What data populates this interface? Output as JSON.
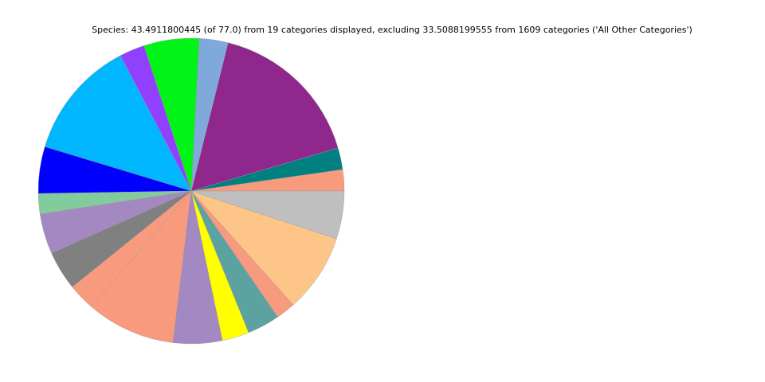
{
  "chart_data": {
    "type": "pie",
    "title": "Species: 43.4911800445 (of 77.0) from 19 categories displayed, excluding 33.5088199555 from 1609 categories ('All Other Categories')",
    "values": [
      0.98,
      1.0,
      7.21,
      1.32,
      2.54,
      1.16,
      5.5,
      2.15,
      0.94,
      1.85,
      1.8,
      1.24,
      4.1,
      2.25,
      1.24,
      1.5,
      0.89,
      3.62,
      2.2
    ],
    "colors": [
      "#f89a7d",
      "#008080",
      "#8f278c",
      "#7fa9da",
      "#00f418",
      "#9240ff",
      "#00b6ff",
      "#0000ff",
      "#82cb9d",
      "#a488c2",
      "#808080",
      "#f89a7d",
      "#f89a7d",
      "#a488c2",
      "#ffff00",
      "#5ba2a0",
      "#f89a7d",
      "#fdc688",
      "#bfbfbf"
    ]
  }
}
